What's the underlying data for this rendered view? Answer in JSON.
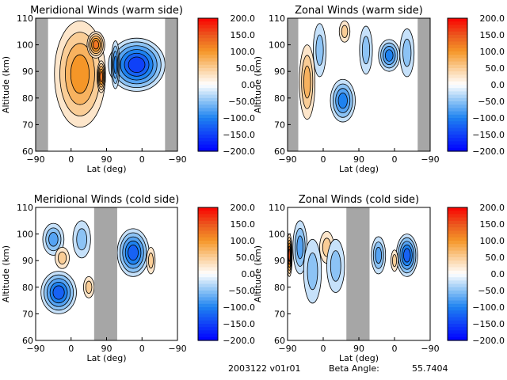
{
  "chart_data": [
    {
      "type": "heatmap",
      "subtype": "filled-contour",
      "title": "Meridional Winds (warm side)",
      "xlabel": "Lat (deg)",
      "ylabel": "Altitude (km)",
      "xticks": [
        "-90",
        "0",
        "90",
        "0",
        "-90"
      ],
      "yticks": [
        "60",
        "70",
        "80",
        "90",
        "100",
        "110"
      ],
      "ylim": [
        60,
        110
      ],
      "colorbar_ticks": [
        "200.0",
        "150.0",
        "100.0",
        "50.0",
        "0.0",
        "-50.0",
        "-100.0",
        "-150.0",
        "-200.0"
      ],
      "clim": [
        -200,
        200
      ],
      "no_data": [
        [
          0,
          0.35
        ],
        [
          3.65,
          4
        ]
      ],
      "blobs": [
        {
          "x": 1.25,
          "y": 89,
          "rx": 0.72,
          "ry": 20,
          "v": 100
        },
        {
          "x": 1.7,
          "y": 100,
          "rx": 0.25,
          "ry": 5,
          "v": 130
        },
        {
          "x": 1.85,
          "y": 88,
          "rx": 0.12,
          "ry": 6,
          "v": 130
        },
        {
          "x": 2.85,
          "y": 92.5,
          "rx": 0.8,
          "ry": 10,
          "v": -150
        },
        {
          "x": 2.25,
          "y": 92.5,
          "rx": 0.12,
          "ry": 9,
          "v": -100
        }
      ]
    },
    {
      "type": "heatmap",
      "subtype": "filled-contour",
      "title": "Zonal Winds (warm side)",
      "xlabel": "Lat (deg)",
      "ylabel": "Altitude (km)",
      "xticks": [
        "-90",
        "0",
        "90",
        "0",
        "-90"
      ],
      "yticks": [
        "60",
        "70",
        "80",
        "90",
        "100",
        "110"
      ],
      "ylim": [
        60,
        110
      ],
      "colorbar_ticks": [
        "200.0",
        "150.0",
        "100.0",
        "50.0",
        "0.0",
        "-50.0",
        "-100.0",
        "-150.0",
        "-200.0"
      ],
      "clim": [
        -200,
        200
      ],
      "no_data": [
        [
          0,
          0.3
        ],
        [
          3.65,
          4
        ]
      ],
      "blobs": [
        {
          "x": 0.55,
          "y": 86,
          "rx": 0.22,
          "ry": 14,
          "v": 75
        },
        {
          "x": 0.9,
          "y": 98,
          "rx": 0.18,
          "ry": 10,
          "v": -50
        },
        {
          "x": 1.55,
          "y": 79,
          "rx": 0.35,
          "ry": 8,
          "v": -100
        },
        {
          "x": 1.6,
          "y": 105,
          "rx": 0.15,
          "ry": 4,
          "v": 50
        },
        {
          "x": 2.2,
          "y": 98,
          "rx": 0.18,
          "ry": 9,
          "v": -50
        },
        {
          "x": 2.85,
          "y": 96,
          "rx": 0.3,
          "ry": 6,
          "v": -100
        },
        {
          "x": 3.35,
          "y": 97,
          "rx": 0.2,
          "ry": 9,
          "v": -50
        }
      ]
    },
    {
      "type": "heatmap",
      "subtype": "filled-contour",
      "title": "Meridional Winds (cold side)",
      "xlabel": "Lat (deg)",
      "ylabel": "Altitude (km)",
      "xticks": [
        "-90",
        "0",
        "90",
        "0",
        "-90"
      ],
      "yticks": [
        "60",
        "70",
        "80",
        "90",
        "100",
        "110"
      ],
      "ylim": [
        60,
        110
      ],
      "colorbar_ticks": [
        "200.0",
        "150.0",
        "100.0",
        "50.0",
        "0.0",
        "-50.0",
        "-100.0",
        "-150.0",
        "-200.0"
      ],
      "clim": [
        -200,
        200
      ],
      "no_data": [
        [
          1.65,
          2.3
        ]
      ],
      "blobs": [
        {
          "x": 0.65,
          "y": 78,
          "rx": 0.5,
          "ry": 8,
          "v": -125
        },
        {
          "x": 0.5,
          "y": 98,
          "rx": 0.3,
          "ry": 6,
          "v": -75
        },
        {
          "x": 0.75,
          "y": 91,
          "rx": 0.2,
          "ry": 4,
          "v": 50
        },
        {
          "x": 1.3,
          "y": 98,
          "rx": 0.25,
          "ry": 7,
          "v": -50
        },
        {
          "x": 1.5,
          "y": 80,
          "rx": 0.15,
          "ry": 4,
          "v": 50
        },
        {
          "x": 2.75,
          "y": 93,
          "rx": 0.45,
          "ry": 9,
          "v": -125
        },
        {
          "x": 3.25,
          "y": 90,
          "rx": 0.12,
          "ry": 5,
          "v": 50
        }
      ]
    },
    {
      "type": "heatmap",
      "subtype": "filled-contour",
      "title": "Zonal Winds (cold side)",
      "xlabel": "Lat (deg)",
      "ylabel": "Altitude (km)",
      "xticks": [
        "-90",
        "0",
        "90",
        "0",
        "-90"
      ],
      "yticks": [
        "60",
        "70",
        "80",
        "90",
        "100",
        "110"
      ],
      "ylim": [
        60,
        110
      ],
      "colorbar_ticks": [
        "200.0",
        "150.0",
        "100.0",
        "50.0",
        "0.0",
        "-50.0",
        "-100.0",
        "-150.0",
        "-200.0"
      ],
      "clim": [
        -200,
        200
      ],
      "no_data": [
        [
          1.65,
          2.3
        ]
      ],
      "blobs": [
        {
          "x": 0.05,
          "y": 92,
          "rx": 0.08,
          "ry": 8,
          "v": 150
        },
        {
          "x": 0.35,
          "y": 95,
          "rx": 0.2,
          "ry": 10,
          "v": -75
        },
        {
          "x": 0.7,
          "y": 86,
          "rx": 0.25,
          "ry": 12,
          "v": -50
        },
        {
          "x": 1.1,
          "y": 95,
          "rx": 0.2,
          "ry": 6,
          "v": 50
        },
        {
          "x": 1.35,
          "y": 88,
          "rx": 0.25,
          "ry": 10,
          "v": -50
        },
        {
          "x": 2.55,
          "y": 92,
          "rx": 0.2,
          "ry": 7,
          "v": -75
        },
        {
          "x": 3.35,
          "y": 92,
          "rx": 0.3,
          "ry": 8,
          "v": -125
        },
        {
          "x": 3.0,
          "y": 90,
          "rx": 0.1,
          "ry": 4,
          "v": 50
        }
      ]
    }
  ],
  "footer": {
    "version": "2003122 v01r01",
    "beta_label": "Beta Angle:",
    "beta_value": "55.7404"
  }
}
